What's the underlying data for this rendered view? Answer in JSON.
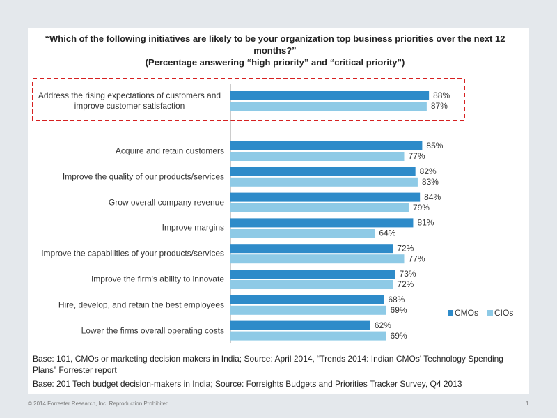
{
  "chart_data": {
    "type": "hbar",
    "title": "“Which of the following initiatives are likely to be your organization top business priorities over the next 12 months?”",
    "subtitle": "(Percentage answering “high priority” and “critical priority”)",
    "categories": [
      "Address the rising expectations of customers and improve customer satisfaction",
      "Acquire and retain customers",
      "Improve the quality of our products/services",
      "Grow overall company revenue",
      "Improve margins",
      "Improve the capabilities of your products/services",
      "Improve the firm's ability to innovate",
      "Hire, develop, and retain the best employees",
      "Lower the firms overall operating costs"
    ],
    "series": [
      {
        "name": "CMOs",
        "color": "#2e8bc9",
        "values": [
          88,
          85,
          82,
          84,
          81,
          72,
          73,
          68,
          62
        ],
        "value_labels": [
          "88%",
          "85%",
          "82%",
          "84%",
          "81%",
          "72%",
          "73%",
          "68%",
          "62%"
        ]
      },
      {
        "name": "CIOs",
        "color": "#8ecae6",
        "values": [
          87,
          77,
          83,
          79,
          64,
          77,
          72,
          69,
          69
        ],
        "value_labels": [
          "87%",
          "77%",
          "83%",
          "79%",
          "64%",
          "77%",
          "72%",
          "69%",
          "69%"
        ]
      }
    ],
    "xlim": [
      0,
      100
    ],
    "notes": [
      "Base: 101, CMOs or marketing decision makers in India;  Source: April 2014, “Trends 2014: Indian CMOs' Technology Spending Plans” Forrester report",
      "Base: 201 Tech budget decision-makers  in India;  Source: Forrsights Budgets and Priorities Tracker Survey,  Q4 2013"
    ]
  },
  "footer": {
    "copyright": "© 2014 Forrester Research, Inc. Reproduction Prohibited",
    "page": "1"
  }
}
